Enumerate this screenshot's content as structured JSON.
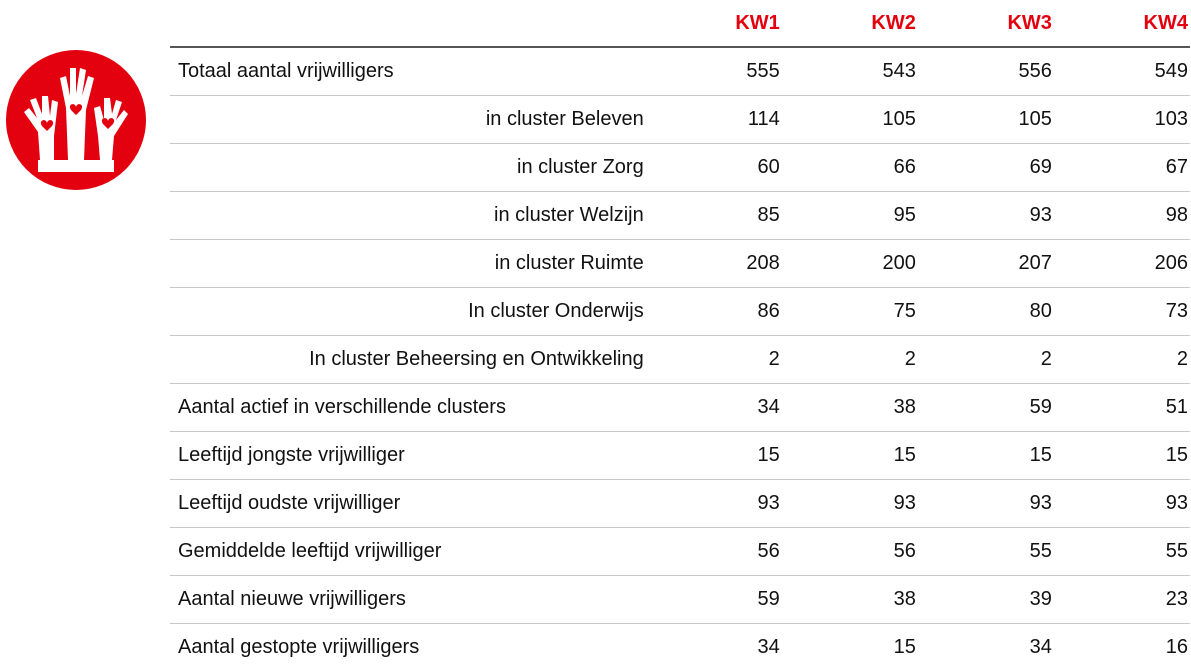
{
  "table": {
    "columns": [
      "KW1",
      "KW2",
      "KW3",
      "KW4"
    ],
    "rows": [
      {
        "label": "Totaal aantal vrijwilligers",
        "values": [
          555,
          543,
          556,
          549
        ]
      },
      {
        "label": "in cluster Beleven",
        "values": [
          114,
          105,
          105,
          103
        ]
      },
      {
        "label": "in cluster Zorg",
        "values": [
          60,
          66,
          69,
          67
        ]
      },
      {
        "label": "in cluster Welzijn",
        "values": [
          85,
          95,
          93,
          98
        ]
      },
      {
        "label": "in cluster Ruimte",
        "values": [
          208,
          200,
          207,
          206
        ]
      },
      {
        "label": "In cluster Onderwijs",
        "values": [
          86,
          75,
          80,
          73
        ]
      },
      {
        "label": "In cluster Beheersing en Ontwikkeling",
        "values": [
          2,
          2,
          2,
          2
        ]
      },
      {
        "label": "Aantal actief in verschillende clusters",
        "values": [
          34,
          38,
          59,
          51
        ]
      },
      {
        "label": "Leeftijd jongste vrijwilliger",
        "values": [
          15,
          15,
          15,
          15
        ]
      },
      {
        "label": "Leeftijd oudste vrijwilliger",
        "values": [
          93,
          93,
          93,
          93
        ]
      },
      {
        "label": "Gemiddelde leeftijd vrijwilliger",
        "values": [
          56,
          56,
          55,
          55
        ]
      },
      {
        "label": "Aantal nieuwe vrijwilligers",
        "values": [
          59,
          38,
          39,
          23
        ]
      },
      {
        "label": "Aantal gestopte vrijwilligers",
        "values": [
          34,
          15,
          34,
          16
        ]
      }
    ]
  }
}
